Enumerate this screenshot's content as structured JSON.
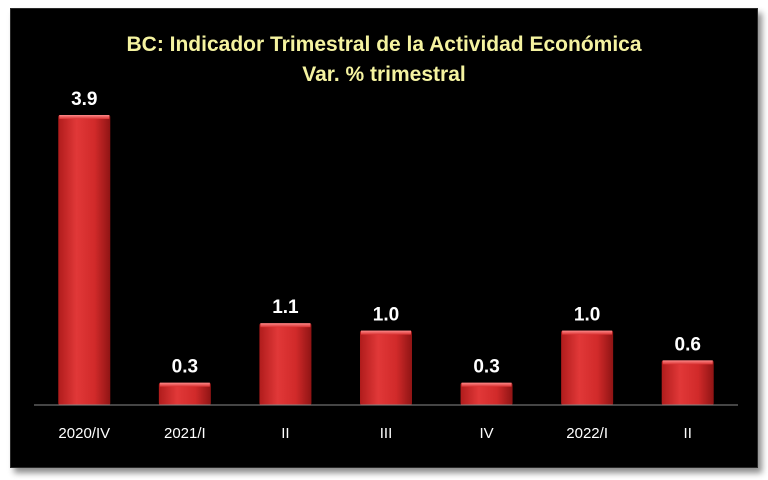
{
  "chart_data": {
    "type": "bar",
    "title": "BC: Indicador Trimestral de la Actividad Económica",
    "subtitle": "Var. % trimestral",
    "categories": [
      "2020/IV",
      "2021/I",
      "II",
      "III",
      "IV",
      "2022/I",
      "II"
    ],
    "values": [
      3.9,
      0.3,
      1.1,
      1.0,
      0.3,
      1.0,
      0.6
    ],
    "value_labels": [
      "3.9",
      "0.3",
      "1.1",
      "1.0",
      "0.3",
      "1.0",
      "0.6"
    ],
    "ylim": [
      0,
      3.9
    ],
    "grid": false,
    "legend": "none",
    "xlabel": "",
    "ylabel": "",
    "colors": {
      "background": "#000000",
      "bar": "#d92b2b",
      "bar_highlight": "#ff6a6a",
      "bar_dark": "#8f1414",
      "title": "#f5f3a0",
      "text": "#ffffff",
      "axis": "#8a8a8a"
    }
  }
}
